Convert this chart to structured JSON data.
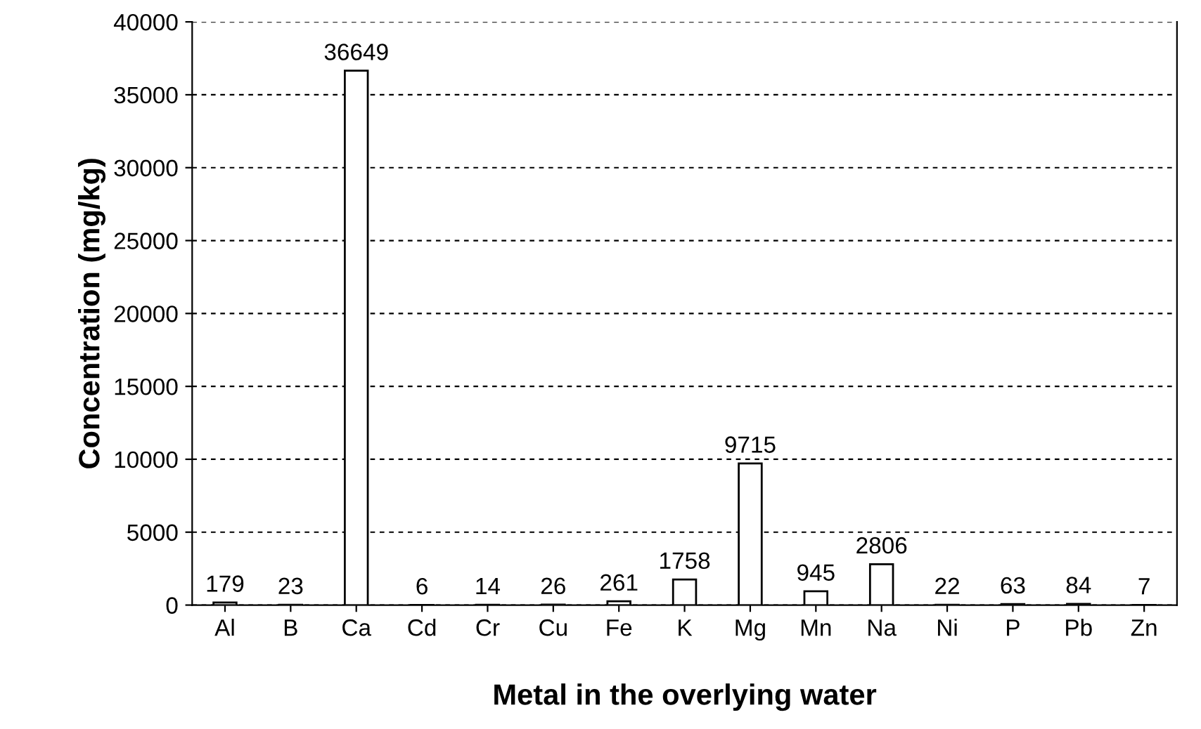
{
  "chart_data": {
    "type": "bar",
    "xlabel": "Metal in the overlying water",
    "ylabel": "Concentration (mg/kg)",
    "categories": [
      "Al",
      "B",
      "Ca",
      "Cd",
      "Cr",
      "Cu",
      "Fe",
      "K",
      "Mg",
      "Mn",
      "Na",
      "Ni",
      "P",
      "Pb",
      "Zn"
    ],
    "values": [
      179,
      23,
      36649,
      6,
      14,
      26,
      261,
      1758,
      9715,
      945,
      2806,
      22,
      63,
      84,
      7
    ],
    "color": "#ffffff",
    "ylim": [
      0,
      40000
    ],
    "yticks": [
      0,
      5000,
      10000,
      15000,
      20000,
      25000,
      30000,
      35000,
      40000
    ],
    "grid": "y",
    "data_labels": true,
    "legend": false
  }
}
